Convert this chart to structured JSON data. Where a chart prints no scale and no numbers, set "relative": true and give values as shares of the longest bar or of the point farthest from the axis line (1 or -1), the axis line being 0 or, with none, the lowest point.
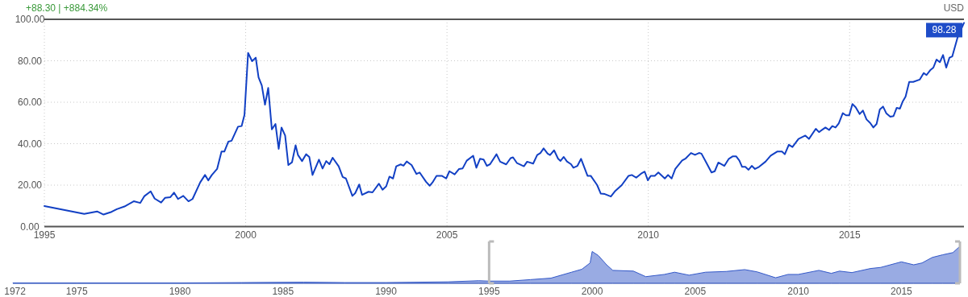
{
  "chart_data": [
    {
      "type": "line",
      "color": "#1240c4",
      "xlim": [
        1995,
        2017.84
      ],
      "ylim": [
        0,
        100
      ],
      "grid": true,
      "xticks": [
        1995,
        2000,
        2005,
        2010,
        2015
      ],
      "yticks": [
        {
          "value": 0,
          "label": "0.00"
        },
        {
          "value": 20,
          "label": "20.00"
        },
        {
          "value": 40,
          "label": "40.00"
        },
        {
          "value": 60,
          "label": "60.00"
        },
        {
          "value": 80,
          "label": "80.00"
        },
        {
          "value": 100,
          "label": "100.00"
        }
      ],
      "annotations": [
        "+88.30 | +884.34%",
        "USD",
        {
          "text": "98.28",
          "x": 2017.84,
          "y": 98.28
        }
      ],
      "x": [
        1995,
        1995.99,
        1996.31,
        1996.47,
        1996.67,
        1996.8,
        1996.99,
        1997.22,
        1997.38,
        1997.48,
        1997.64,
        1997.74,
        1997.9,
        1998,
        1998.13,
        1998.22,
        1998.32,
        1998.45,
        1998.58,
        1998.68,
        1998.87,
        1998.99,
        1999.07,
        1999.16,
        1999.29,
        1999.4,
        1999.47,
        1999.57,
        1999.65,
        1999.81,
        1999.9,
        1999.97,
        2000.06,
        2000.16,
        2000.25,
        2000.32,
        2000.4,
        2000.48,
        2000.56,
        2000.65,
        2000.74,
        2000.82,
        2000.89,
        2000.98,
        2001.06,
        2001.15,
        2001.24,
        2001.3,
        2001.4,
        2001.5,
        2001.58,
        2001.66,
        2001.82,
        2001.91,
        2002,
        2002.08,
        2002.16,
        2002.31,
        2002.41,
        2002.49,
        2002.65,
        2002.72,
        2002.82,
        2002.89,
        2003.05,
        2003.15,
        2003.31,
        2003.4,
        2003.49,
        2003.57,
        2003.66,
        2003.74,
        2003.85,
        2003.92,
        2004,
        2004.12,
        2004.24,
        2004.32,
        2004.48,
        2004.57,
        2004.64,
        2004.74,
        2004.87,
        2004.98,
        2005.06,
        2005.19,
        2005.3,
        2005.39,
        2005.49,
        2005.65,
        2005.73,
        2005.82,
        2005.91,
        2005.99,
        2006.07,
        2006.23,
        2006.32,
        2006.47,
        2006.58,
        2006.64,
        2006.74,
        2006.91,
        2006.99,
        2007.14,
        2007.24,
        2007.32,
        2007.4,
        2007.5,
        2007.56,
        2007.66,
        2007.76,
        2007.82,
        2007.9,
        2007.98,
        2008.08,
        2008.14,
        2008.24,
        2008.33,
        2008.49,
        2008.57,
        2008.73,
        2008.82,
        2008.92,
        2009.07,
        2009.18,
        2009.34,
        2009.51,
        2009.59,
        2009.7,
        2009.84,
        2009.91,
        2009.99,
        2010.06,
        2010.16,
        2010.25,
        2010.41,
        2010.49,
        2010.58,
        2010.67,
        2010.84,
        2010.93,
        2011.06,
        2011.16,
        2011.26,
        2011.32,
        2011.44,
        2011.57,
        2011.65,
        2011.74,
        2011.89,
        2012,
        2012.1,
        2012.18,
        2012.26,
        2012.33,
        2012.41,
        2012.49,
        2012.57,
        2012.65,
        2012.75,
        2012.91,
        2013.04,
        2013.2,
        2013.32,
        2013.39,
        2013.49,
        2013.58,
        2013.73,
        2013.9,
        2013.99,
        2014.16,
        2014.24,
        2014.4,
        2014.49,
        2014.57,
        2014.65,
        2014.73,
        2014.83,
        2014.91,
        2014.99,
        2015.07,
        2015.15,
        2015.25,
        2015.33,
        2015.42,
        2015.51,
        2015.59,
        2015.67,
        2015.75,
        2015.83,
        2015.91,
        2016.01,
        2016.09,
        2016.17,
        2016.25,
        2016.32,
        2016.39,
        2016.48,
        2016.58,
        2016.74,
        2016.84,
        2016.91,
        2017,
        2017.08,
        2017.16,
        2017.24,
        2017.32,
        2017.4,
        2017.48,
        2017.55,
        2017.68,
        2017.84
      ],
      "values": [
        9.9,
        6.1,
        7.3,
        5.8,
        7.1,
        8.4,
        9.7,
        12.2,
        11.4,
        14.6,
        17,
        13.5,
        11.6,
        13.9,
        14.2,
        16.4,
        13.3,
        14.8,
        12.2,
        13.3,
        21.3,
        24.9,
        22.3,
        24.9,
        27.8,
        36.2,
        36.2,
        41,
        41.4,
        48.2,
        48.5,
        53.9,
        83.8,
        79.8,
        81.5,
        72,
        68.1,
        58.8,
        66.9,
        46.9,
        49.5,
        37.5,
        47.8,
        43.9,
        29.7,
        31,
        39.2,
        34.5,
        31.6,
        34.9,
        33.6,
        24.9,
        32.3,
        28,
        31.6,
        30.1,
        33.2,
        29.1,
        23.9,
        23.2,
        14.8,
        16.1,
        20.3,
        15.3,
        16.8,
        16.5,
        20.7,
        17.8,
        19.4,
        24.1,
        23.2,
        29.1,
        30,
        29.4,
        31.4,
        29.7,
        25.4,
        26.1,
        21.6,
        19.7,
        21.3,
        24.5,
        24.5,
        23.2,
        26.7,
        25.2,
        27.8,
        28.1,
        31.8,
        34.2,
        28.4,
        32.7,
        32.3,
        29.3,
        30.1,
        34.9,
        31.3,
        30,
        33,
        33.4,
        30.6,
        29.1,
        31.3,
        30.4,
        34.5,
        35.5,
        37.7,
        35.2,
        34.5,
        36.8,
        32.7,
        31.7,
        33.6,
        31.4,
        30.1,
        28.4,
        29.3,
        32.7,
        24.5,
        24.5,
        20,
        15.9,
        15.7,
        14.5,
        17.2,
        20,
        24.5,
        24.9,
        23.6,
        25.8,
        26.5,
        22.3,
        24.5,
        24.5,
        26.1,
        23.2,
        24.9,
        23.2,
        27.8,
        31.9,
        32.9,
        35.5,
        34.6,
        35.5,
        35.2,
        30.9,
        26.1,
        26.7,
        30.9,
        29.3,
        32.7,
        33.9,
        33.9,
        31.9,
        28.8,
        28.8,
        27.4,
        29.3,
        27.8,
        28.8,
        31.3,
        34.2,
        36.2,
        36.2,
        34.9,
        39.5,
        38.4,
        42.3,
        43.9,
        42.3,
        47.2,
        45.6,
        47.8,
        46.6,
        48.5,
        47.8,
        49.8,
        54.7,
        53.7,
        53.7,
        59.1,
        57.6,
        54.3,
        56,
        51.7,
        50,
        47.8,
        49.5,
        56.5,
        57.9,
        54.7,
        53,
        53.3,
        57.3,
        56.9,
        60.4,
        62.7,
        69.8,
        69.8,
        70.9,
        74.1,
        73.1,
        75.4,
        76.7,
        80.6,
        79.3,
        82.8,
        76.7,
        81.5,
        82.1,
        91.2,
        98.28
      ]
    },
    {
      "type": "area",
      "relative": true,
      "color": "#3358c8",
      "xlim": [
        1971.9,
        2017.84
      ],
      "xticks": [
        1972,
        1975,
        1980,
        1985,
        1990,
        1995,
        2000,
        2005,
        2010,
        2015
      ],
      "x": [
        1971.9,
        1975,
        1980,
        1983,
        1986,
        1988,
        1990,
        1993,
        1994.5,
        1995,
        1996,
        1997,
        1998,
        1999,
        1999.5,
        1999.9,
        2000,
        2000.3,
        2000.7,
        2001,
        2002,
        2002.6,
        2003.5,
        2004,
        2004.7,
        2005.5,
        2006.5,
        2007.4,
        2008,
        2008.9,
        2009.5,
        2010,
        2011,
        2011.6,
        2012,
        2012.6,
        2013.5,
        2014,
        2015,
        2015.6,
        2016,
        2016.5,
        2017,
        2017.5,
        2017.84
      ],
      "values": [
        0.01,
        0.01,
        0.01,
        0.02,
        0.03,
        0.02,
        0.02,
        0.04,
        0.07,
        0.06,
        0.06,
        0.1,
        0.14,
        0.3,
        0.38,
        0.55,
        0.86,
        0.75,
        0.5,
        0.35,
        0.33,
        0.18,
        0.24,
        0.3,
        0.22,
        0.3,
        0.32,
        0.37,
        0.31,
        0.15,
        0.24,
        0.24,
        0.35,
        0.27,
        0.33,
        0.29,
        0.4,
        0.43,
        0.58,
        0.5,
        0.55,
        0.7,
        0.77,
        0.83,
        1
      ]
    }
  ]
}
